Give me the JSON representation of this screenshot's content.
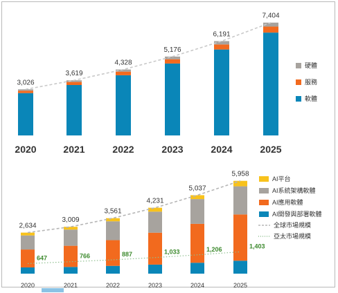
{
  "chart_data": [
    {
      "type": "bar",
      "stacked": true,
      "categories": [
        "2020",
        "2021",
        "2022",
        "2023",
        "2024",
        "2025"
      ],
      "totals": [
        3026,
        3619,
        4328,
        5176,
        6191,
        7404
      ],
      "total_labels": [
        "3,026",
        "3,619",
        "4,328",
        "5,176",
        "6,191",
        "7,404"
      ],
      "series": [
        {
          "name": "軟體",
          "color": "#0a86b8",
          "values": [
            2780,
            3310,
            3950,
            4720,
            5640,
            6750
          ]
        },
        {
          "name": "服務",
          "color": "#f26a1e",
          "values": [
            156,
            199,
            238,
            281,
            331,
            394
          ]
        },
        {
          "name": "硬體",
          "color": "#a7a39e",
          "values": [
            90,
            110,
            140,
            175,
            220,
            260
          ]
        }
      ],
      "trend_line": {
        "style": "dashed",
        "color": "#c9c9c9"
      },
      "ylim": [
        0,
        7800
      ],
      "legend_position": "right",
      "grid": false
    },
    {
      "type": "bar",
      "stacked": true,
      "categories": [
        "2020",
        "2021",
        "2022",
        "2023",
        "2024",
        "2025"
      ],
      "totals": [
        2634,
        3009,
        3561,
        4231,
        5037,
        5958
      ],
      "total_labels": [
        "2,634",
        "3,009",
        "3,561",
        "4,231",
        "5,037",
        "5,958"
      ],
      "series": [
        {
          "name": "AI開發與部署軟體",
          "color": "#0a86b8",
          "values": [
            400,
            430,
            500,
            580,
            700,
            830
          ]
        },
        {
          "name": "AI應用軟體",
          "color": "#f26a1e",
          "values": [
            1150,
            1360,
            1650,
            2050,
            2500,
            2970
          ]
        },
        {
          "name": "AI系統架構軟體",
          "color": "#a7a39e",
          "values": [
            904,
            1039,
            1211,
            1351,
            1587,
            1808
          ]
        },
        {
          "name": "AI平台",
          "color": "#f8c21c",
          "values": [
            180,
            180,
            200,
            250,
            250,
            350
          ]
        }
      ],
      "lines": [
        {
          "name": "全球市場規模",
          "style": "dashed",
          "color": "#b5b5b5",
          "values": [
            2634,
            3009,
            3561,
            4231,
            5037,
            5958
          ]
        },
        {
          "name": "亞太市場規模",
          "style": "dotted",
          "color": "#8fbf8f",
          "values": [
            647,
            766,
            887,
            1033,
            1206,
            1403
          ],
          "labels": [
            "647",
            "766",
            "887",
            "1,033",
            "1,206",
            "1,403"
          ],
          "label_color": "#3d8a2e"
        }
      ],
      "ylim": [
        0,
        6300
      ],
      "legend_position": "right",
      "grid": false
    }
  ]
}
